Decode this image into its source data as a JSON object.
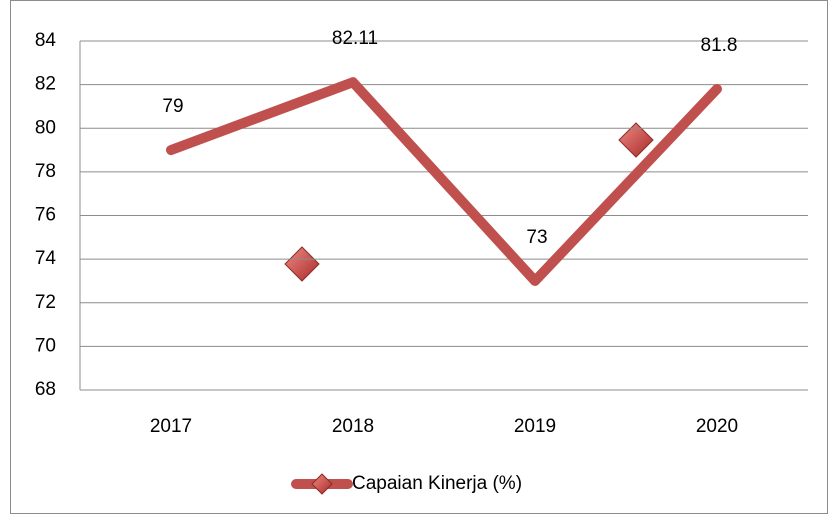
{
  "chart_data": {
    "type": "line",
    "categories": [
      "2017",
      "2018",
      "2019",
      "2020"
    ],
    "series": [
      {
        "name": "Capaian Kinerja (%)",
        "color": "#c0504d",
        "values": [
          79,
          82.11,
          73,
          81.8
        ]
      }
    ],
    "ylim": [
      68,
      84
    ],
    "yticks": [
      68,
      70,
      72,
      74,
      76,
      78,
      80,
      82,
      84
    ],
    "grid": true,
    "legend": "bottom",
    "data_labels": true
  }
}
